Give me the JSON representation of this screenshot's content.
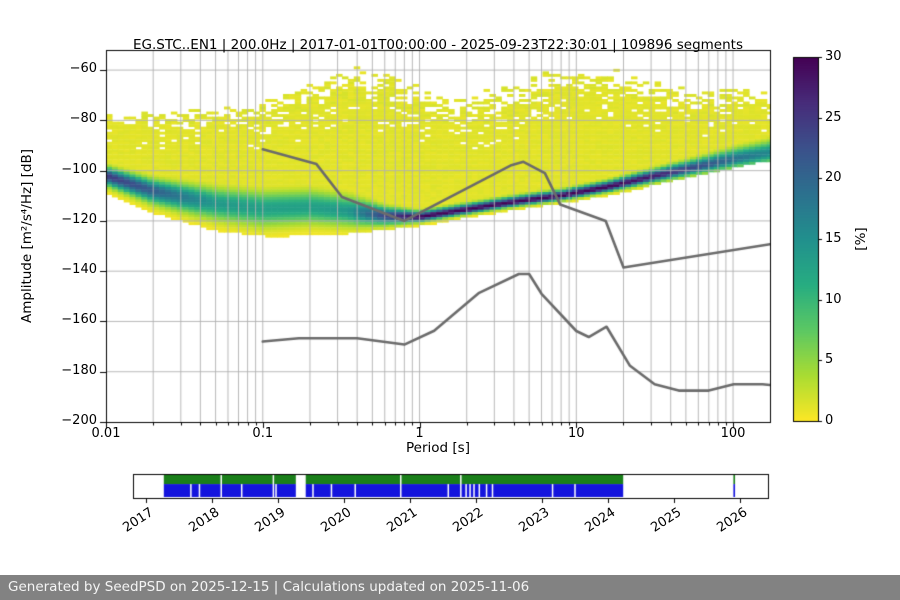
{
  "title": "EG.STC..EN1 | 200.0Hz | 2017-01-01T00:00:00 - 2025-09-23T22:30:01 | 109896 segments",
  "footer": "Generated by SeedPSD on 2025-12-15 | Calculations updated on 2025-11-06",
  "chart_data": {
    "type": "heatmap",
    "title": "EG.STC..EN1 | 200.0Hz | 2017-01-01T00:00:00 - 2025-09-23T22:30:01 | 109896 segments",
    "xlabel": "Period [s]",
    "ylabel": "Amplitude [m²/s⁴/Hz] [dB]",
    "x_axis": {
      "scale": "log",
      "min": 0.01,
      "max": 172,
      "ticks": [
        0.01,
        0.1,
        1,
        10,
        100
      ],
      "tick_labels": [
        "0.01",
        "0.1",
        "1",
        "10",
        "100"
      ],
      "grid": true
    },
    "y_axis": {
      "min": -200,
      "max": -52,
      "ticks": [
        -60,
        -80,
        -100,
        -120,
        -140,
        -160,
        -180,
        -200
      ],
      "tick_labels": [
        "−60",
        "−80",
        "−100",
        "−120",
        "−140",
        "−160",
        "−180",
        "−200"
      ],
      "grid": true
    },
    "colorbar": {
      "label": "[%]",
      "min": 0,
      "max": 30,
      "ticks": [
        0,
        5,
        10,
        15,
        20,
        25,
        30
      ],
      "tick_labels": [
        "0",
        "5",
        "10",
        "15",
        "20",
        "25",
        "30"
      ],
      "colormap": "viridis_r",
      "color_low": "#fde725",
      "color_high": "#440154"
    },
    "ppsd_distribution": {
      "comment": "probability density vs period: mode line (dB), peak probability (%), gaussian spreads (dB), yellow-cloud envelopes (dB)",
      "periods": [
        0.01,
        0.02,
        0.05,
        0.1,
        0.2,
        0.35,
        0.6,
        1,
        2,
        4,
        8,
        16,
        30,
        60,
        100,
        172
      ],
      "mode_db": [
        -102,
        -108,
        -113,
        -115,
        -114.5,
        -116,
        -118,
        -118.5,
        -115.5,
        -112.5,
        -110,
        -106.5,
        -102.5,
        -98.5,
        -95.5,
        -93
      ],
      "peak_percent": [
        25,
        21,
        14,
        13,
        13,
        14,
        24,
        30,
        30,
        30,
        30,
        30,
        28,
        23,
        19,
        16
      ],
      "sigma_hi_db": [
        2.2,
        2.8,
        3.8,
        4.2,
        4.2,
        3.8,
        2.2,
        1.4,
        1.4,
        1.4,
        1.4,
        1.5,
        1.7,
        2.1,
        2.6,
        3.0
      ],
      "sigma_lo_db": [
        2.4,
        3.2,
        4.2,
        4.6,
        4.2,
        3.8,
        2.2,
        1.2,
        1.1,
        1.1,
        1.1,
        1.2,
        1.4,
        1.7,
        2.1,
        2.5
      ],
      "cloud_bottom_db": [
        -110,
        -117,
        -124,
        -126,
        -126,
        -125,
        -123.5,
        -122,
        -119,
        -116,
        -113,
        -110,
        -106,
        -102,
        -99,
        -96
      ],
      "solid_top_db": [
        -81,
        -81,
        -82,
        -82,
        -76,
        -72,
        -74,
        -78,
        -84,
        -78,
        -70,
        -69,
        -74,
        -80,
        -75,
        -74
      ],
      "speckle_top_db": [
        -77,
        -76,
        -74,
        -70,
        -62,
        -57,
        -58,
        -64,
        -68,
        -64,
        -59,
        -58,
        -62,
        -67,
        -67,
        -68
      ]
    },
    "noise_models": {
      "low": [
        [
          0.1,
          -168.0
        ],
        [
          0.17,
          -166.7
        ],
        [
          0.4,
          -166.7
        ],
        [
          0.8,
          -169.2
        ],
        [
          1.24,
          -163.7
        ],
        [
          2.4,
          -148.6
        ],
        [
          4.3,
          -141.1
        ],
        [
          5.0,
          -141.1
        ],
        [
          6.0,
          -149.0
        ],
        [
          10.0,
          -163.8
        ],
        [
          12.0,
          -166.2
        ],
        [
          15.6,
          -162.1
        ],
        [
          21.9,
          -177.5
        ],
        [
          31.6,
          -185.0
        ],
        [
          45.0,
          -187.5
        ],
        [
          70.0,
          -187.5
        ],
        [
          101.0,
          -185.0
        ],
        [
          154.0,
          -185.0
        ],
        [
          172.0,
          -185.3
        ]
      ],
      "high": [
        [
          0.1,
          -91.5
        ],
        [
          0.22,
          -97.4
        ],
        [
          0.32,
          -110.5
        ],
        [
          0.8,
          -120.0
        ],
        [
          3.8,
          -98.0
        ],
        [
          4.6,
          -96.5
        ],
        [
          6.3,
          -101.0
        ],
        [
          7.9,
          -113.5
        ],
        [
          15.4,
          -120.0
        ],
        [
          20.0,
          -138.5
        ],
        [
          172.0,
          -129.3
        ]
      ],
      "line_color": "#6b6b6b"
    }
  },
  "timeline": {
    "axis": {
      "min": 2016.8,
      "max": 2026.42,
      "ticks": [
        2017,
        2018,
        2019,
        2020,
        2021,
        2022,
        2023,
        2024,
        2025,
        2026
      ],
      "tick_labels": [
        "2017",
        "2018",
        "2019",
        "2020",
        "2021",
        "2022",
        "2023",
        "2024",
        "2025",
        "2026"
      ]
    },
    "coverage": [
      {
        "start": 2017.27,
        "end": 2019.27
      },
      {
        "start": 2019.42,
        "end": 2024.23
      },
      {
        "start": 2025.9,
        "end": 2025.925
      }
    ],
    "full_gaps": [
      2018.14,
      2018.93,
      2020.86,
      2021.77
    ],
    "blue_gaps": [
      2017.68,
      2017.81,
      2018.45,
      2018.97,
      2019.53,
      2019.81,
      2020.17,
      2021.58,
      2021.85,
      2021.91,
      2021.97,
      2022.05,
      2022.16,
      2022.25,
      2023.16,
      2023.5
    ],
    "colors": {
      "green": "#1a7f1a",
      "blue": "#1414dd"
    }
  }
}
